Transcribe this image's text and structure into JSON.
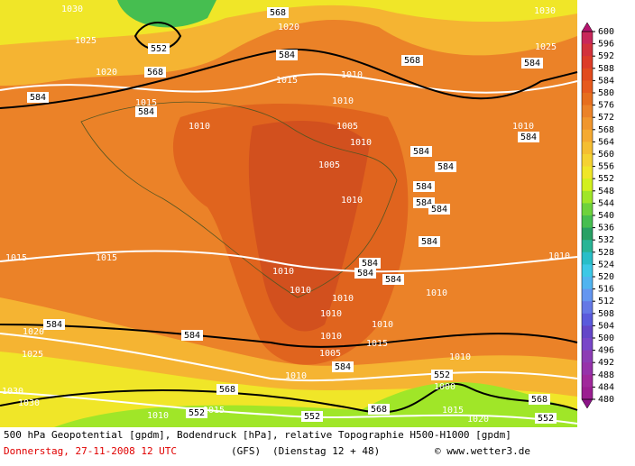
{
  "colorbar": {
    "ticks": [
      600,
      596,
      592,
      588,
      584,
      580,
      576,
      572,
      568,
      564,
      560,
      556,
      552,
      548,
      544,
      540,
      536,
      532,
      528,
      524,
      520,
      516,
      512,
      508,
      504,
      500,
      496,
      492,
      488,
      484,
      480
    ],
    "colors": [
      "#c8285a",
      "#d2323c",
      "#dc3c28",
      "#e14b1e",
      "#e65a1e",
      "#e66e1e",
      "#eb8228",
      "#f0962d",
      "#f5aa32",
      "#f5be32",
      "#f5d232",
      "#f0e628",
      "#d2f01e",
      "#a0e628",
      "#6ed23c",
      "#46be50",
      "#28a064",
      "#28b496",
      "#28bec8",
      "#3cc8e6",
      "#50b4f0",
      "#6496f0",
      "#6478e6",
      "#5a5adc",
      "#6446c8",
      "#7846c8",
      "#8c3cb4",
      "#9632aa",
      "#a0289b",
      "#9b1e91"
    ],
    "top_color": "#b4146e",
    "bottom_color": "#8c1487"
  },
  "contour_labels": [
    "1030",
    "1025",
    "552",
    "568",
    "1020",
    "584",
    "1015",
    "584",
    "1010",
    "568",
    "1020",
    "584",
    "1015",
    "1010",
    "1010",
    "1005",
    "1010",
    "1005",
    "1010",
    "568",
    "584",
    "1025",
    "1030",
    "1010",
    "584",
    "584",
    "584",
    "584",
    "584",
    "584",
    "584",
    "1015",
    "1015",
    "1010",
    "584",
    "584",
    "584",
    "1010",
    "1010",
    "1010",
    "1010",
    "1010",
    "1010",
    "584",
    "1020",
    "584",
    "1010",
    "1015",
    "1005",
    "1025",
    "584",
    "1010",
    "1010",
    "552",
    "1000",
    "1030",
    "568",
    "1030",
    "552",
    "1010",
    "1015",
    "552",
    "568",
    "1015",
    "568",
    "552",
    "1020"
  ],
  "footer": {
    "description": "500 hPa Geopotential [gpdm], Bodendruck [hPa], relative Topographie H500-H1000 [gpdm]",
    "date": "Donnerstag, 27-11-2008  12 UTC",
    "model": "(GFS)",
    "run": "(Dienstag 12 + 48)",
    "credit": "© www.wetter3.de"
  }
}
